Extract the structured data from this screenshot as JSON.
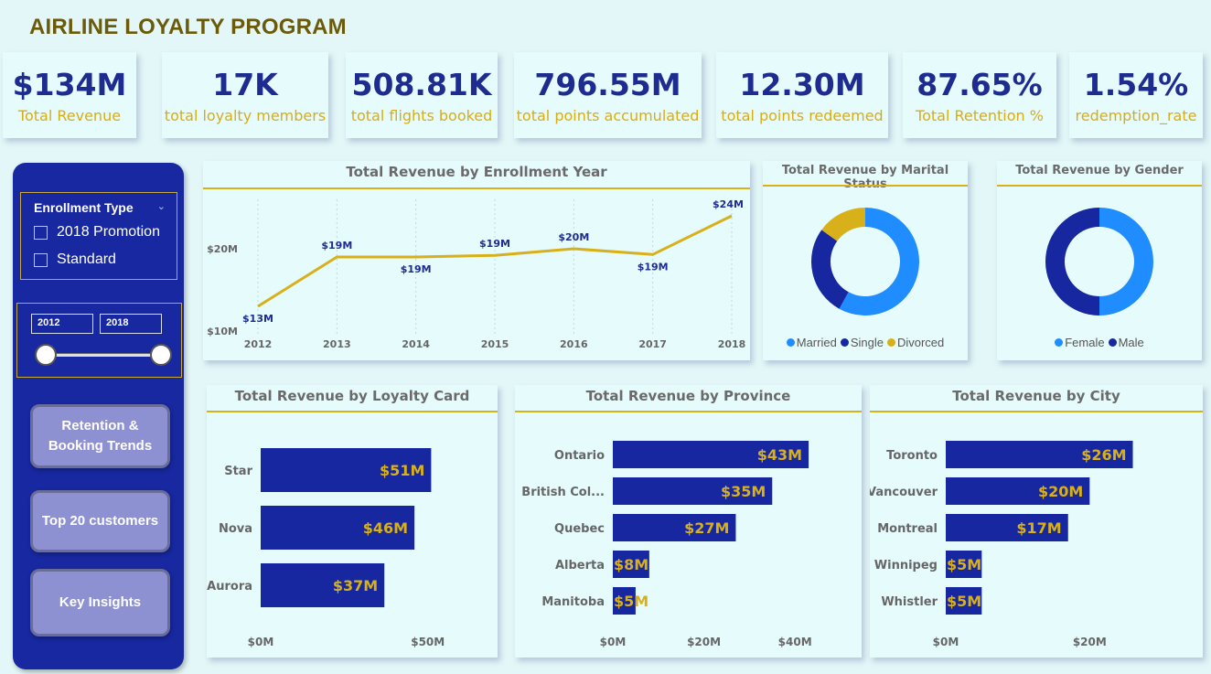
{
  "header": {
    "title": "AIRLINE LOYALTY PROGRAM"
  },
  "kpis": [
    {
      "value": "$134M",
      "label": "Total Revenue"
    },
    {
      "value": "17K",
      "label": "total loyalty members"
    },
    {
      "value": "508.81K",
      "label": "total flights booked"
    },
    {
      "value": "796.55M",
      "label": "total points accumulated"
    },
    {
      "value": "12.30M",
      "label": "total points redeemed"
    },
    {
      "value": "87.65%",
      "label": "Total Retention %"
    },
    {
      "value": "1.54%",
      "label": "redemption_rate"
    }
  ],
  "filters": {
    "enrollment_type": {
      "header": "Enrollment Type",
      "options": [
        "2018 Promotion",
        "Standard"
      ]
    },
    "year_range": {
      "from": "2012",
      "to": "2018"
    }
  },
  "nav": {
    "retention": "Retention & Booking Trends",
    "top20": "Top 20 customers",
    "insights": "Key Insights"
  },
  "colors": {
    "navy": "#1727a0",
    "gold": "#d8b01a",
    "blue": "#1f8dff",
    "label_navy": "#1e2c8f"
  },
  "chart_data": [
    {
      "type": "line",
      "title": "Total Revenue by Enrollment Year",
      "x": [
        "2012",
        "2013",
        "2014",
        "2015",
        "2016",
        "2017",
        "2018"
      ],
      "values": [
        13,
        19,
        19,
        19.2,
        20,
        19.3,
        24
      ],
      "data_labels": [
        "$13M",
        "$19M",
        "$19M",
        "$19M",
        "$20M",
        "$19M",
        "$24M"
      ],
      "y_ticks": [
        "$10M",
        "$20M"
      ],
      "ylim": [
        10,
        25
      ]
    },
    {
      "type": "pie",
      "title": "Total Revenue by Marital Status",
      "labels": [
        "Married",
        "Single",
        "Divorced"
      ],
      "values": [
        58,
        27,
        15
      ],
      "colors": [
        "#1f8dff",
        "#1727a0",
        "#d8b01a"
      ]
    },
    {
      "type": "pie",
      "title": "Total Revenue by Gender",
      "labels": [
        "Female",
        "Male"
      ],
      "values": [
        50,
        50
      ],
      "colors": [
        "#1f8dff",
        "#1727a0"
      ]
    },
    {
      "type": "bar",
      "title": "Total Revenue by Loyalty Card",
      "categories": [
        "Star",
        "Nova",
        "Aurora"
      ],
      "values": [
        51,
        46,
        37
      ],
      "data_labels": [
        "$51M",
        "$46M",
        "$37M"
      ],
      "x_ticks": [
        "$0M",
        "$50M"
      ],
      "xlim": [
        0,
        55
      ]
    },
    {
      "type": "bar",
      "title": "Total Revenue by Province",
      "categories": [
        "Ontario",
        "British Col...",
        "Quebec",
        "Alberta",
        "Manitoba"
      ],
      "values": [
        43,
        35,
        27,
        8,
        5
      ],
      "data_labels": [
        "$43M",
        "$35M",
        "$27M",
        "$8M",
        "$5M"
      ],
      "x_ticks": [
        "$0M",
        "$20M",
        "$40M"
      ],
      "xlim": [
        0,
        48
      ]
    },
    {
      "type": "bar",
      "title": "Total Revenue by City",
      "categories": [
        "Toronto",
        "Vancouver",
        "Montreal",
        "Winnipeg",
        "Whistler"
      ],
      "values": [
        26,
        20,
        17,
        5,
        5
      ],
      "data_labels": [
        "$26M",
        "$20M",
        "$17M",
        "$5M",
        "$5M"
      ],
      "x_ticks": [
        "$0M",
        "$20M"
      ],
      "xlim": [
        0,
        30
      ]
    }
  ]
}
